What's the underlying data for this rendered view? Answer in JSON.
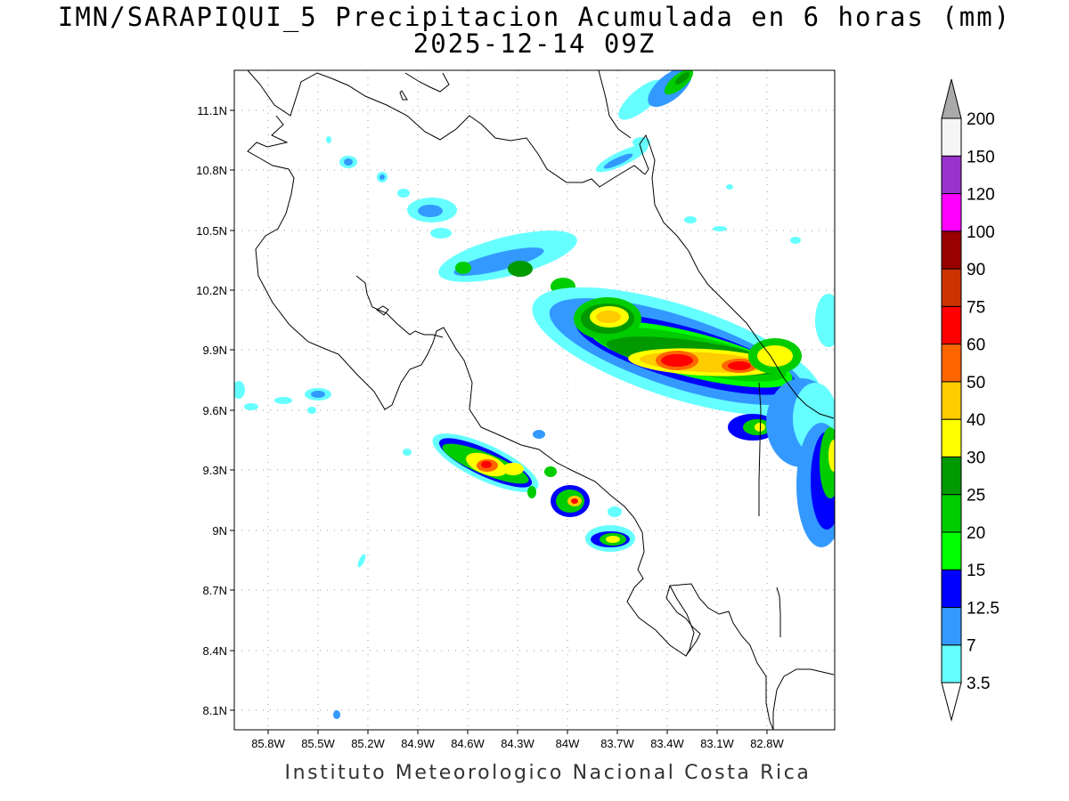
{
  "title": {
    "line1": "IMN/SARAPIQUI_5 Precipitacion Acumulada en 6 horas (mm)",
    "line2": "2025-12-14 09Z"
  },
  "footer": "Instituto Meteorologico Nacional Costa Rica",
  "map": {
    "region": "Costa Rica",
    "variable": "Precipitacion Acumulada en 6 horas",
    "units": "mm",
    "gridlines": "dotted",
    "lat_ticks": [
      "11.1N",
      "10.8N",
      "10.5N",
      "10.2N",
      "9.9N",
      "9.6N",
      "9.3N",
      "9N",
      "8.7N",
      "8.4N",
      "8.1N"
    ],
    "lon_ticks": [
      "85.8W",
      "85.5W",
      "85.2W",
      "84.9W",
      "84.6W",
      "84.3W",
      "84W",
      "83.7W",
      "83.4W",
      "83.1W",
      "82.8W"
    ]
  },
  "colorbar": {
    "levels": [
      "3.5",
      "7",
      "12.5",
      "15",
      "20",
      "25",
      "30",
      "40",
      "50",
      "60",
      "75",
      "90",
      "100",
      "120",
      "150",
      "200"
    ],
    "colors": [
      "#66ffff",
      "#3399ff",
      "#0000ff",
      "#00ff00",
      "#00cc00",
      "#009900",
      "#ffff00",
      "#ffcc00",
      "#ff6600",
      "#ff0000",
      "#cc3300",
      "#990000",
      "#ff00ff",
      "#9933cc",
      "#f5f5f5"
    ],
    "over_color": "#aaaaaa",
    "under_color": "#ffffff"
  }
}
